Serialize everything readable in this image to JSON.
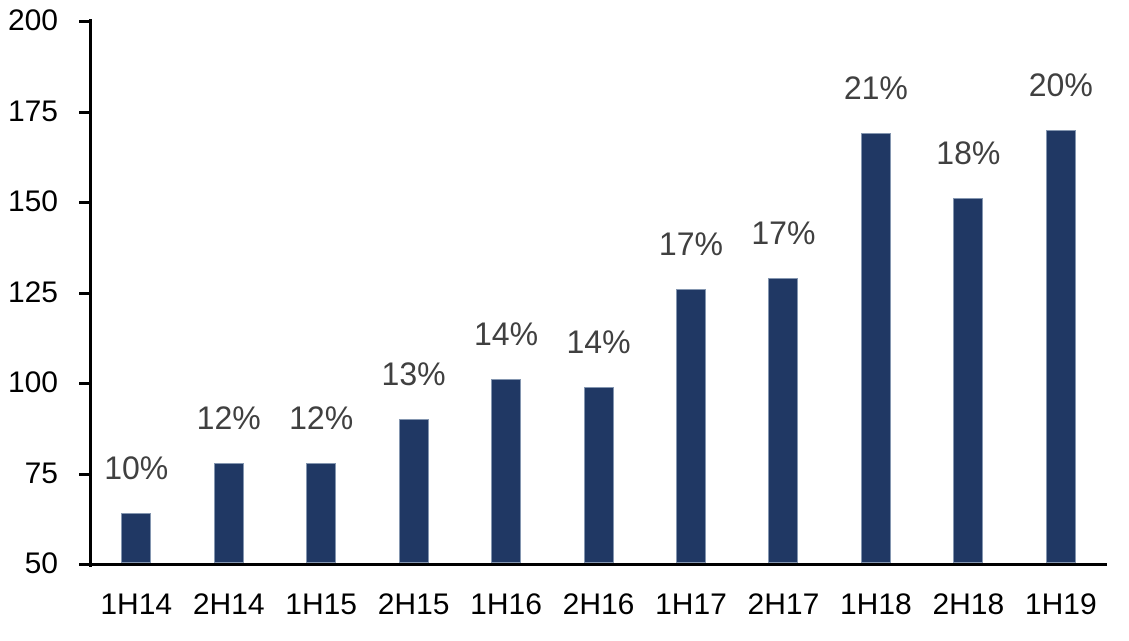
{
  "chart_data": {
    "type": "bar",
    "title": "",
    "xlabel": "",
    "ylabel": "",
    "categories": [
      "1H14",
      "2H14",
      "1H15",
      "2H15",
      "1H16",
      "2H16",
      "1H17",
      "2H17",
      "1H18",
      "2H18",
      "1H19"
    ],
    "values": [
      64,
      78,
      78,
      90,
      101,
      99,
      126,
      129,
      169,
      151,
      170
    ],
    "data_labels": [
      "10%",
      "12%",
      "12%",
      "13%",
      "14%",
      "14%",
      "17%",
      "17%",
      "21%",
      "18%",
      "20%"
    ],
    "ylim": [
      50,
      200
    ],
    "yticks": [
      50,
      75,
      100,
      125,
      150,
      175,
      200
    ],
    "grid": false,
    "legend": false,
    "colors": {
      "bar_fill": "#203864",
      "bar_border": "#8496b0",
      "data_label": "#404040",
      "axis_line": "#000000",
      "axis_text": "#000000",
      "background": "#ffffff"
    }
  }
}
